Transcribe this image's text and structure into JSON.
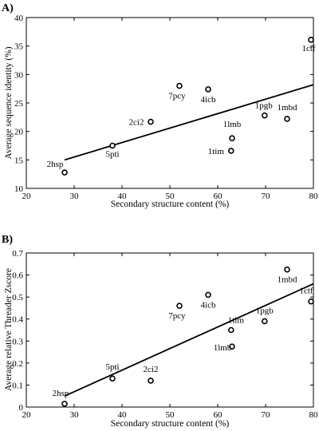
{
  "chart_data": [
    {
      "panel_label": "A)",
      "type": "scatter",
      "xlabel": "Secondary structure content (%)",
      "ylabel": "Average sequence identity (%)",
      "xlim": [
        20,
        80
      ],
      "ylim": [
        10,
        40
      ],
      "xticks": [
        20,
        30,
        40,
        50,
        60,
        70,
        80
      ],
      "yticks": [
        10,
        15,
        20,
        25,
        30,
        35,
        40
      ],
      "grid": false,
      "points": [
        {
          "label": "2hsp",
          "x": 28.0,
          "y": 12.8
        },
        {
          "label": "5pti",
          "x": 38.0,
          "y": 17.5
        },
        {
          "label": "2ci2",
          "x": 46.0,
          "y": 21.7
        },
        {
          "label": "7pcy",
          "x": 52.0,
          "y": 28.0
        },
        {
          "label": "4icb",
          "x": 58.0,
          "y": 27.4
        },
        {
          "label": "1tim",
          "x": 62.8,
          "y": 16.6
        },
        {
          "label": "1lmb",
          "x": 63.0,
          "y": 18.8
        },
        {
          "label": "1pgb",
          "x": 69.8,
          "y": 22.8
        },
        {
          "label": "1mbd",
          "x": 74.5,
          "y": 22.2
        },
        {
          "label": "1ctf",
          "x": 79.5,
          "y": 36.1
        }
      ],
      "fit_line": {
        "x": [
          28,
          80
        ],
        "y": [
          15.0,
          28.2
        ]
      }
    },
    {
      "panel_label": "B)",
      "type": "scatter",
      "xlabel": "Secondary structure content (%)",
      "ylabel": "Average relative Threader Zscore",
      "xlim": [
        20,
        80
      ],
      "ylim": [
        0,
        0.7
      ],
      "xticks": [
        20,
        30,
        40,
        50,
        60,
        70,
        80
      ],
      "yticks": [
        "0",
        "0.1",
        "0.2",
        "0.3",
        "0.4",
        "0.5",
        "0.6",
        "0.7"
      ],
      "grid": false,
      "points": [
        {
          "label": "2hsp",
          "x": 28.0,
          "y": 0.015
        },
        {
          "label": "5pti",
          "x": 38.0,
          "y": 0.13
        },
        {
          "label": "2ci2",
          "x": 46.0,
          "y": 0.12
        },
        {
          "label": "7pcy",
          "x": 52.0,
          "y": 0.46
        },
        {
          "label": "4icb",
          "x": 58.0,
          "y": 0.51
        },
        {
          "label": "1tim",
          "x": 62.8,
          "y": 0.35
        },
        {
          "label": "1lmb",
          "x": 63.0,
          "y": 0.275
        },
        {
          "label": "1pgb",
          "x": 69.8,
          "y": 0.39
        },
        {
          "label": "1mbd",
          "x": 74.5,
          "y": 0.625
        },
        {
          "label": "1ctf",
          "x": 79.5,
          "y": 0.48
        }
      ],
      "fit_line": {
        "x": [
          28,
          80
        ],
        "y": [
          0.05,
          0.56
        ]
      }
    }
  ]
}
